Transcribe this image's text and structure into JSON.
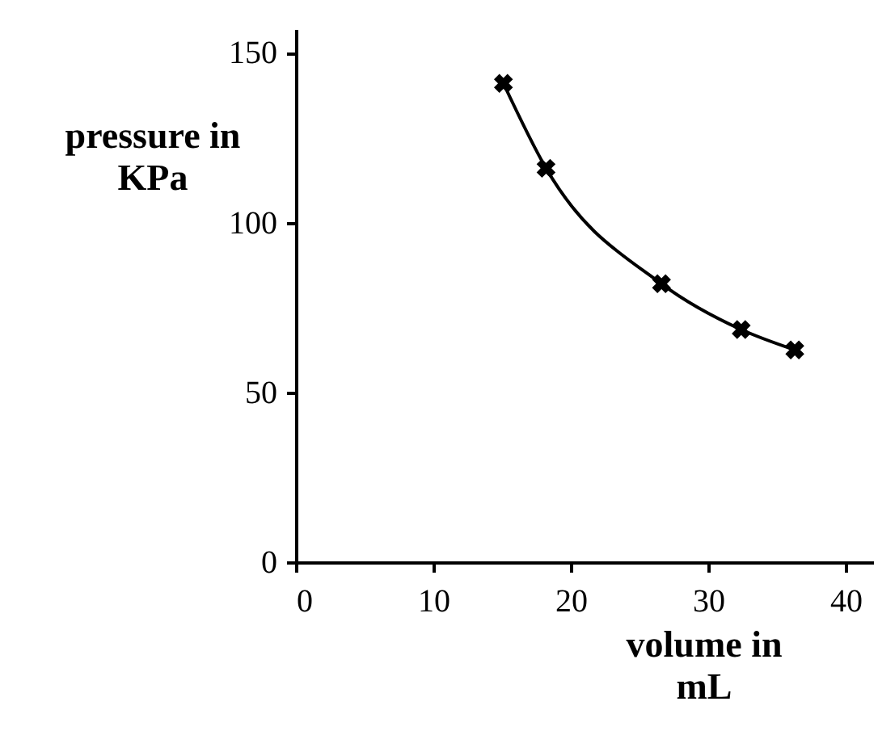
{
  "chart_data": {
    "type": "line",
    "xlabel": "volume in mL",
    "ylabel": "pressure in KPa",
    "x": [
      15.1,
      18.2,
      26.6,
      32.4,
      36.3
    ],
    "series": [
      {
        "color": "#000000",
        "values": [
          141,
          116,
          82,
          68.5,
          62.5
        ]
      }
    ],
    "xlim": [
      0,
      42
    ],
    "xticks": [
      0,
      10,
      20,
      30,
      40
    ],
    "ylim": [
      0,
      157
    ],
    "yticks": [
      0,
      50,
      100,
      150
    ],
    "marker": "cross",
    "line_style": "solid"
  }
}
